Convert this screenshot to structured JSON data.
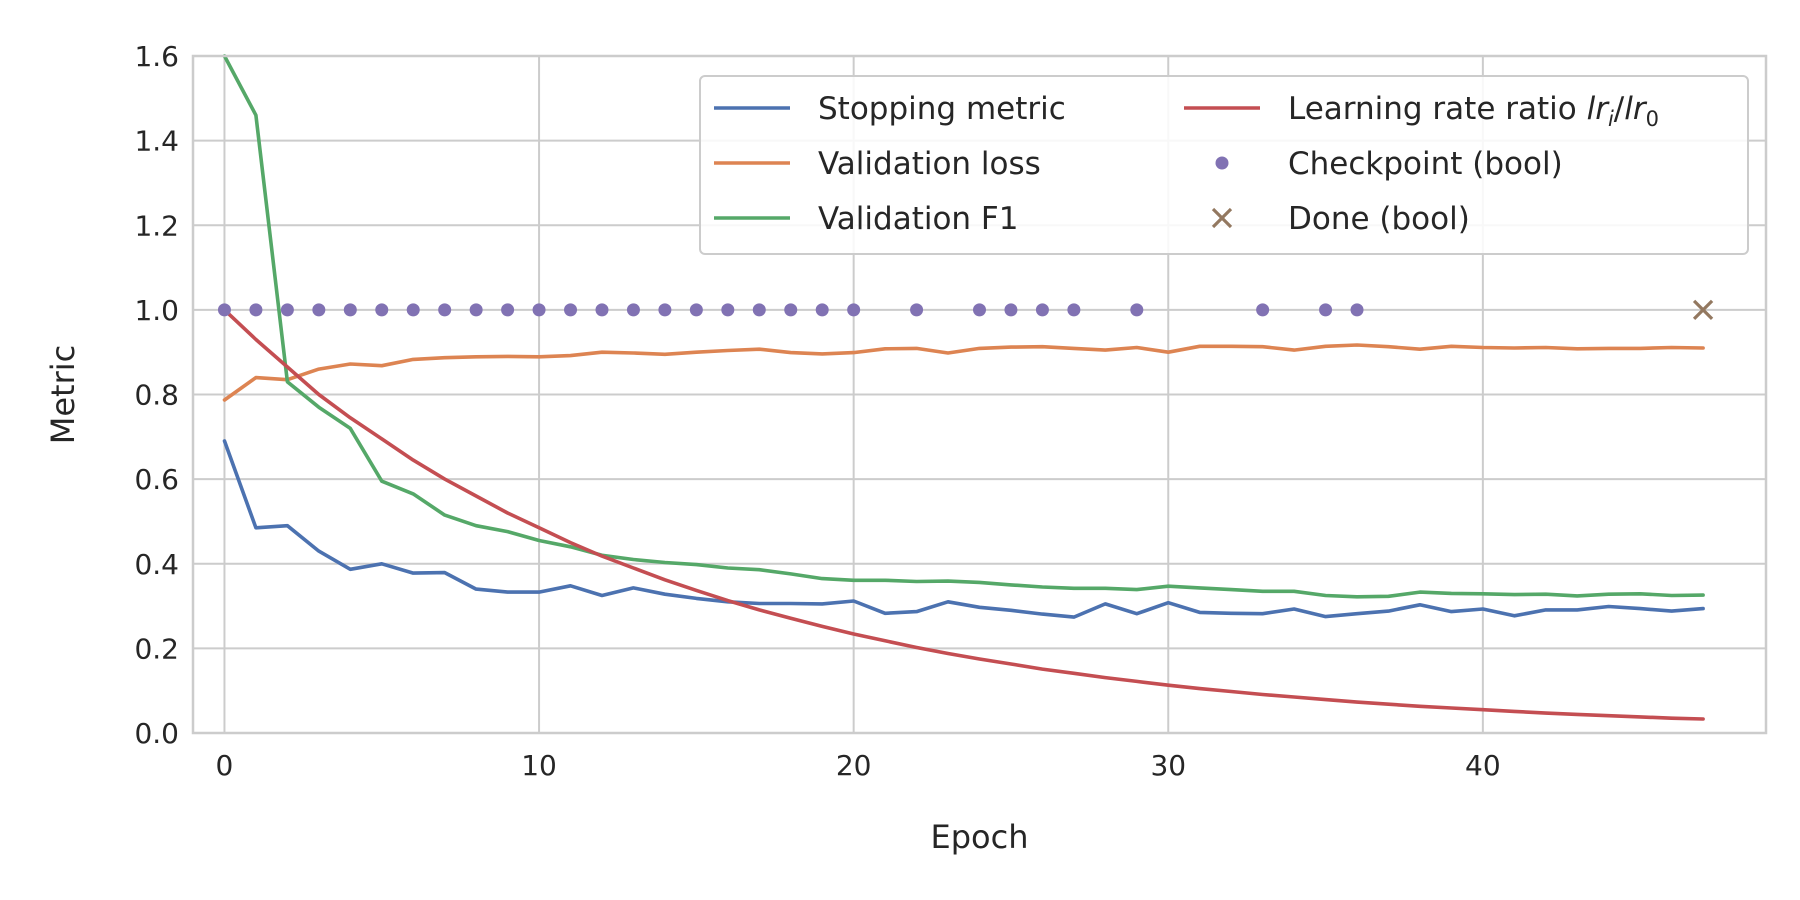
{
  "chart_data": {
    "type": "line",
    "xlabel": "Epoch",
    "ylabel": "Metric",
    "xlim": [
      -1,
      49
    ],
    "ylim": [
      0,
      1.6
    ],
    "xticks": [
      "0",
      "10",
      "20",
      "30",
      "40"
    ],
    "yticks": [
      "0.0",
      "0.2",
      "0.4",
      "0.6",
      "0.8",
      "1.0",
      "1.2",
      "1.4",
      "1.6"
    ],
    "grid": true,
    "legend_position": "top-right",
    "series": [
      {
        "name": "Stopping metric",
        "kind": "line",
        "color": "#4c72b0",
        "x": [
          0,
          1,
          2,
          3,
          4,
          5,
          6,
          7,
          8,
          9,
          10,
          11,
          12,
          13,
          14,
          15,
          16,
          17,
          18,
          19,
          20,
          21,
          22,
          23,
          24,
          25,
          26,
          27,
          28,
          29,
          30,
          31,
          32,
          33,
          34,
          35,
          36,
          37,
          38,
          39,
          40,
          41,
          42,
          43,
          44,
          45,
          46,
          47
        ],
        "y": [
          0.69,
          0.485,
          0.49,
          0.43,
          0.387,
          0.4,
          0.378,
          0.379,
          0.34,
          0.333,
          0.333,
          0.348,
          0.325,
          0.343,
          0.328,
          0.318,
          0.31,
          0.306,
          0.306,
          0.305,
          0.312,
          0.283,
          0.287,
          0.31,
          0.297,
          0.29,
          0.281,
          0.274,
          0.305,
          0.282,
          0.308,
          0.285,
          0.283,
          0.282,
          0.293,
          0.275,
          0.282,
          0.288,
          0.303,
          0.287,
          0.293,
          0.277,
          0.291,
          0.291,
          0.299,
          0.294,
          0.288,
          0.294
        ]
      },
      {
        "name": "Validation loss",
        "kind": "line",
        "color": "#dd8452",
        "x": [
          0,
          1,
          2,
          3,
          4,
          5,
          6,
          7,
          8,
          9,
          10,
          11,
          12,
          13,
          14,
          15,
          16,
          17,
          18,
          19,
          20,
          21,
          22,
          23,
          24,
          25,
          26,
          27,
          28,
          29,
          30,
          31,
          32,
          33,
          34,
          35,
          36,
          37,
          38,
          39,
          40,
          41,
          42,
          43,
          44,
          45,
          46,
          47
        ],
        "y": [
          0.787,
          0.84,
          0.835,
          0.86,
          0.872,
          0.868,
          0.883,
          0.887,
          0.889,
          0.89,
          0.889,
          0.892,
          0.9,
          0.898,
          0.895,
          0.9,
          0.904,
          0.907,
          0.899,
          0.896,
          0.899,
          0.908,
          0.909,
          0.898,
          0.909,
          0.912,
          0.913,
          0.909,
          0.905,
          0.911,
          0.9,
          0.914,
          0.914,
          0.913,
          0.905,
          0.914,
          0.917,
          0.913,
          0.907,
          0.914,
          0.911,
          0.91,
          0.911,
          0.908,
          0.909,
          0.909,
          0.911,
          0.91
        ]
      },
      {
        "name": "Validation F1",
        "kind": "line",
        "color": "#55a868",
        "x": [
          0,
          1,
          2,
          3,
          4,
          5,
          6,
          7,
          8,
          9,
          10,
          11,
          12,
          13,
          14,
          15,
          16,
          17,
          18,
          19,
          20,
          21,
          22,
          23,
          24,
          25,
          26,
          27,
          28,
          29,
          30,
          31,
          32,
          33,
          34,
          35,
          36,
          37,
          38,
          39,
          40,
          41,
          42,
          43,
          44,
          45,
          46,
          47
        ],
        "y": [
          1.6,
          1.46,
          0.83,
          0.77,
          0.72,
          0.595,
          0.565,
          0.515,
          0.49,
          0.476,
          0.455,
          0.44,
          0.42,
          0.41,
          0.403,
          0.398,
          0.39,
          0.386,
          0.376,
          0.365,
          0.361,
          0.361,
          0.358,
          0.359,
          0.356,
          0.35,
          0.345,
          0.342,
          0.342,
          0.339,
          0.347,
          0.343,
          0.339,
          0.335,
          0.335,
          0.325,
          0.322,
          0.323,
          0.333,
          0.33,
          0.329,
          0.327,
          0.328,
          0.324,
          0.328,
          0.329,
          0.325,
          0.326
        ]
      },
      {
        "name": "Learning rate ratio",
        "name_math": "lr",
        "name_sub_i": "i",
        "name_sub_0": "0",
        "kind": "line",
        "color": "#c44e52",
        "x": [
          0,
          1,
          2,
          3,
          4,
          5,
          6,
          7,
          8,
          9,
          10,
          11,
          12,
          13,
          14,
          15,
          16,
          17,
          18,
          19,
          20,
          21,
          22,
          23,
          24,
          25,
          26,
          27,
          28,
          29,
          30,
          31,
          32,
          33,
          34,
          35,
          36,
          37,
          38,
          39,
          40,
          41,
          42,
          43,
          44,
          45,
          46,
          47
        ],
        "y": [
          1.0,
          0.93,
          0.865,
          0.8,
          0.745,
          0.695,
          0.645,
          0.6,
          0.56,
          0.52,
          0.485,
          0.45,
          0.418,
          0.39,
          0.362,
          0.337,
          0.313,
          0.291,
          0.271,
          0.252,
          0.234,
          0.218,
          0.202,
          0.188,
          0.175,
          0.163,
          0.151,
          0.141,
          0.131,
          0.122,
          0.113,
          0.105,
          0.098,
          0.091,
          0.085,
          0.079,
          0.073,
          0.068,
          0.063,
          0.059,
          0.055,
          0.051,
          0.047,
          0.044,
          0.041,
          0.038,
          0.035,
          0.033
        ]
      },
      {
        "name": "Checkpoint (bool)",
        "kind": "dots",
        "color": "#8172b3",
        "x": [
          0,
          1,
          2,
          3,
          4,
          5,
          6,
          7,
          8,
          9,
          10,
          11,
          12,
          13,
          14,
          15,
          16,
          17,
          18,
          19,
          20,
          22,
          24,
          25,
          26,
          27,
          29,
          33,
          35,
          36
        ],
        "y": [
          1,
          1,
          1,
          1,
          1,
          1,
          1,
          1,
          1,
          1,
          1,
          1,
          1,
          1,
          1,
          1,
          1,
          1,
          1,
          1,
          1,
          1,
          1,
          1,
          1,
          1,
          1,
          1,
          1,
          1
        ]
      },
      {
        "name": "Done (bool)",
        "kind": "cross",
        "color": "#937860",
        "x": [
          47
        ],
        "y": [
          1
        ]
      }
    ]
  }
}
